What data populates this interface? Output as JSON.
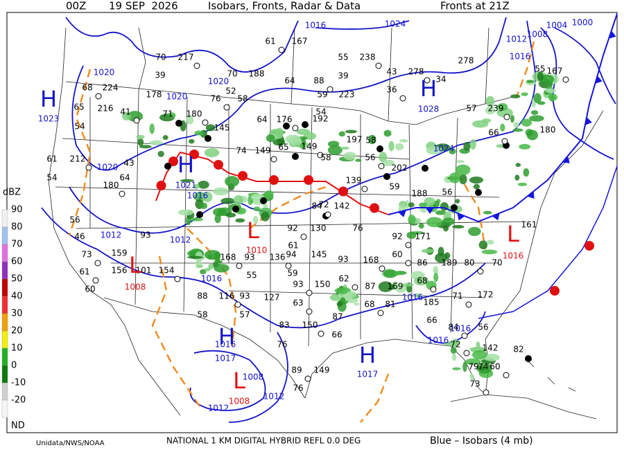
{
  "header": {
    "time": "00Z",
    "date": "19 SEP  2026",
    "title": "Isobars, Fronts, Radar & Data",
    "fronts_time": "Fronts at 21Z"
  },
  "footer": {
    "credit": "Unidata/NWS/NOAA",
    "product": "NATIONAL 1 KM DIGITAL HYBRID REFL 0.0 DEG",
    "isobar_note": "Blue – Isobars (4 mb)"
  },
  "legend": {
    "unit": "dBZ",
    "labels": [
      90,
      80,
      70,
      60,
      50,
      40,
      30,
      20,
      10,
      0,
      -10,
      -20,
      "ND"
    ]
  },
  "pressure_centers": [
    {
      "letter": "H",
      "value": 1023
    },
    {
      "letter": "H",
      "value": 1028
    },
    {
      "letter": "H",
      "value": 1021
    },
    {
      "letter": "H",
      "value": 1016
    },
    {
      "letter": "H",
      "value": 1017
    },
    {
      "letter": "L",
      "value": 1010
    },
    {
      "letter": "L",
      "value": 1008
    },
    {
      "letter": "L",
      "value": 1016
    },
    {
      "letter": "L",
      "value": 1008
    }
  ],
  "isobar_labels": [
    1016,
    1024,
    1012,
    1008,
    1004,
    1000,
    1016,
    1020,
    1020,
    1020,
    1020,
    1016,
    1012,
    1012,
    1016,
    1016,
    1016,
    1016,
    1012,
    1012,
    1008,
    1024,
    1017
  ],
  "station_values": [
    70,
    217,
    70,
    188,
    61,
    167,
    55,
    238,
    39,
    43,
    278,
    278,
    64,
    88,
    59,
    223,
    36,
    34,
    57,
    239,
    52,
    58,
    76,
    178,
    224,
    68,
    65,
    216,
    41,
    54,
    71,
    180,
    145,
    64,
    176,
    192,
    54,
    149,
    197,
    58,
    66,
    180,
    61,
    212,
    54,
    43,
    180,
    64,
    74,
    149,
    65,
    58,
    56,
    202,
    59,
    139,
    188,
    56,
    92,
    130,
    72,
    84,
    142,
    76,
    92,
    171,
    161,
    60,
    86,
    189,
    80,
    70,
    93,
    168,
    145,
    93,
    136,
    94,
    61,
    62,
    87,
    169,
    68,
    55,
    59,
    93,
    150,
    127,
    63,
    57,
    88,
    116,
    93,
    83,
    150,
    87,
    66,
    68,
    81,
    185,
    71,
    172,
    66,
    84,
    56,
    76,
    89,
    149,
    76,
    73,
    79,
    74,
    60,
    142,
    82,
    72,
    56,
    46,
    73,
    159,
    156,
    61,
    60,
    101,
    154,
    58,
    93,
    168,
    39,
    55,
    167
  ]
}
